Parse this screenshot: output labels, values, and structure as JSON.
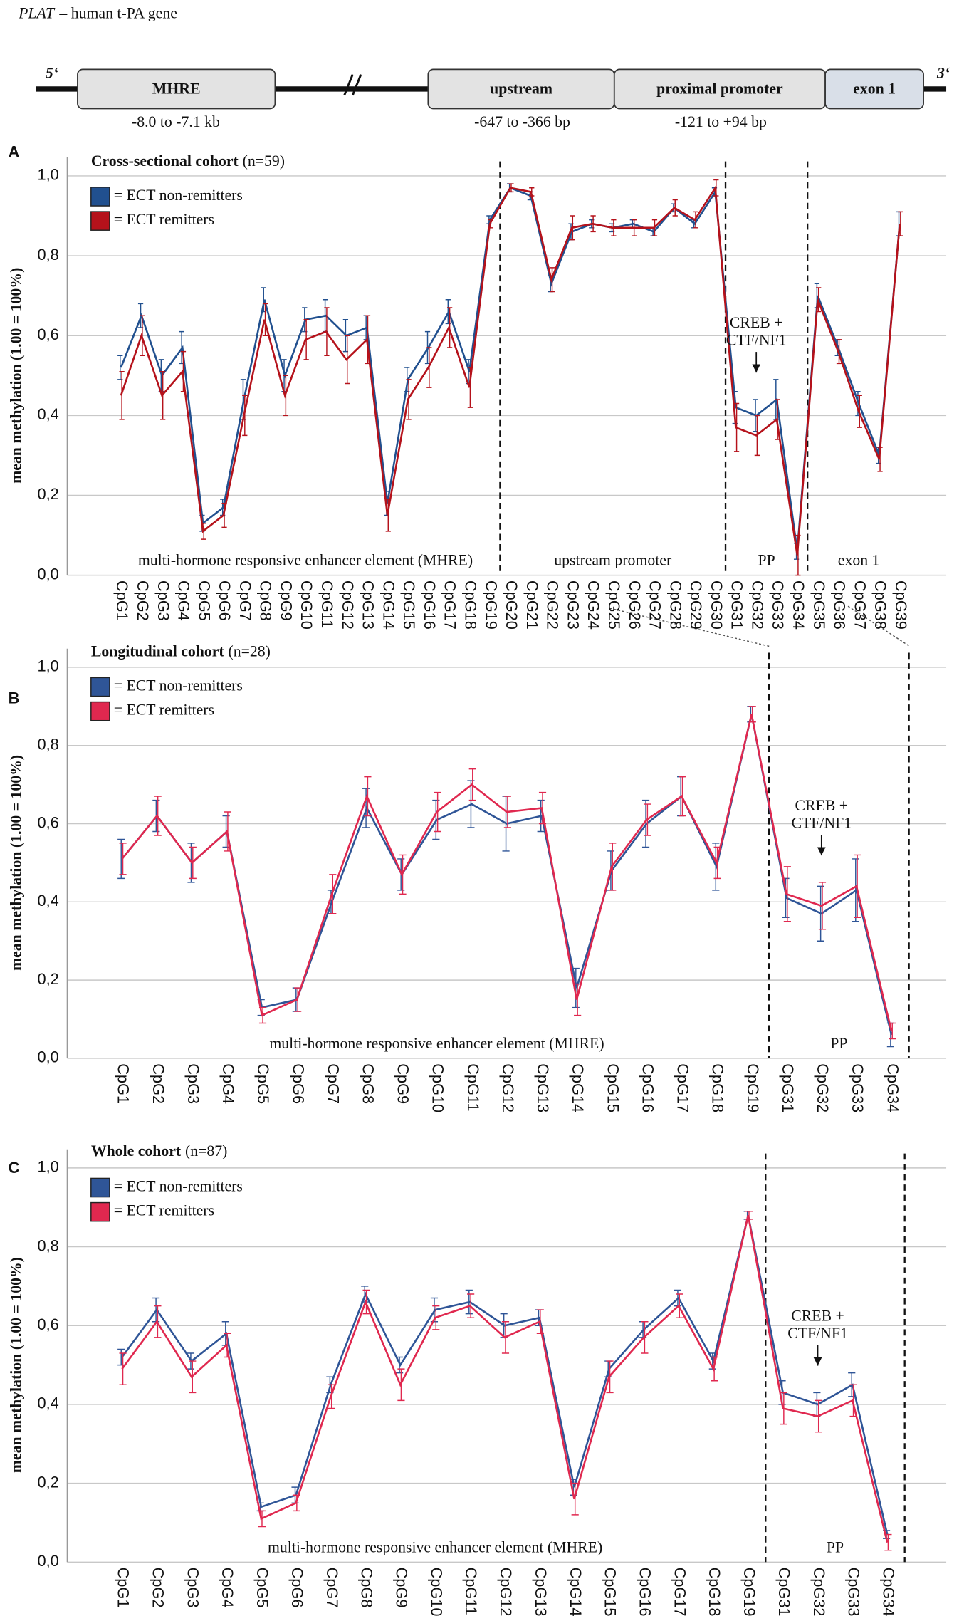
{
  "gene_diagram": {
    "title_italic": "PLAT",
    "title": "– human t-PA gene",
    "five_prime": "5‘",
    "three_prime": "3‘",
    "boxes": [
      {
        "label": "MHRE",
        "range": "-8.0 to -7.1 kb"
      },
      {
        "label": "upstream",
        "range": "-647 to -366 bp"
      },
      {
        "label": "proximal promoter",
        "range": "-121 to +94 bp"
      },
      {
        "label": "exon 1"
      }
    ]
  },
  "chart_data": [
    {
      "type": "line",
      "panel": "A",
      "title": "Cross-sectional cohort",
      "subtitle": "(n=59)",
      "y_label": "mean methylation (1.00 = 100%)",
      "categories": [
        "CpG1",
        "CpG2",
        "CpG3",
        "CpG4",
        "CpG5",
        "CpG6",
        "CpG7",
        "CpG8",
        "CpG9",
        "CpG10",
        "CpG11",
        "CpG12",
        "CpG13",
        "CpG14",
        "CpG15",
        "CpG16",
        "CpG17",
        "CpG18",
        "CpG19",
        "CpG20",
        "CpG21",
        "CpG22",
        "CpG23",
        "CpG24",
        "CpG25",
        "CpG26",
        "CpG27",
        "CpG28",
        "CpG29",
        "CpG30",
        "CpG31",
        "CpG32",
        "CpG33",
        "CpG34",
        "CpG35",
        "CpG36",
        "CpG37",
        "CpG38",
        "CpG39"
      ],
      "series": [
        {
          "name": "= ECT non-remitters",
          "color": "#21508f",
          "values": [
            0.52,
            0.65,
            0.5,
            0.57,
            0.13,
            0.17,
            0.44,
            0.69,
            0.5,
            0.64,
            0.65,
            0.6,
            0.62,
            0.18,
            0.49,
            0.57,
            0.66,
            0.51,
            0.89,
            0.97,
            0.95,
            0.73,
            0.86,
            0.88,
            0.87,
            0.88,
            0.86,
            0.92,
            0.88,
            0.96,
            0.42,
            0.4,
            0.44,
            0.06,
            0.7,
            0.57,
            0.43,
            0.3,
            0.88
          ],
          "errors": [
            0.03,
            0.03,
            0.04,
            0.04,
            0.02,
            0.02,
            0.05,
            0.03,
            0.04,
            0.03,
            0.04,
            0.04,
            0.03,
            0.03,
            0.03,
            0.04,
            0.03,
            0.03,
            0.01,
            0.01,
            0.01,
            0.02,
            0.02,
            0.01,
            0.01,
            0.01,
            0.01,
            0.01,
            0.01,
            0.01,
            0.04,
            0.04,
            0.05,
            0.02,
            0.03,
            0.02,
            0.03,
            0.02,
            0.03
          ]
        },
        {
          "name": "= ECT remitters",
          "color": "#b5121b",
          "values": [
            0.45,
            0.6,
            0.45,
            0.51,
            0.11,
            0.15,
            0.4,
            0.64,
            0.45,
            0.59,
            0.61,
            0.54,
            0.59,
            0.15,
            0.44,
            0.52,
            0.62,
            0.47,
            0.88,
            0.97,
            0.96,
            0.74,
            0.87,
            0.88,
            0.87,
            0.87,
            0.87,
            0.92,
            0.89,
            0.97,
            0.37,
            0.35,
            0.39,
            0.05,
            0.69,
            0.56,
            0.41,
            0.29,
            0.88
          ],
          "errors": [
            0.06,
            0.05,
            0.06,
            0.05,
            0.02,
            0.03,
            0.05,
            0.04,
            0.05,
            0.05,
            0.06,
            0.06,
            0.06,
            0.04,
            0.05,
            0.05,
            0.05,
            0.05,
            0.01,
            0.01,
            0.01,
            0.03,
            0.03,
            0.02,
            0.02,
            0.02,
            0.02,
            0.02,
            0.02,
            0.02,
            0.06,
            0.05,
            0.05,
            0.05,
            0.03,
            0.03,
            0.04,
            0.03,
            0.03
          ]
        }
      ],
      "ylim": [
        0,
        1
      ],
      "yticks": [
        {
          "value": 0,
          "label": "0,0"
        },
        {
          "value": 0.2,
          "label": "0,2"
        },
        {
          "value": 0.4,
          "label": "0,4"
        },
        {
          "value": 0.6,
          "label": "0,6"
        },
        {
          "value": 0.8,
          "label": "0,8"
        },
        {
          "value": 1,
          "label": "1,0"
        }
      ],
      "grid": true,
      "regions": [
        {
          "label": "multi-hormone responsive enhancer element (MHRE)",
          "from": "CpG1",
          "to": "CpG19"
        },
        {
          "label": "upstream promoter",
          "from": "CpG20",
          "to": "CpG30"
        },
        {
          "label": "PP",
          "from": "CpG31",
          "to": "CpG34"
        },
        {
          "label": "exon 1",
          "from": "CpG35",
          "to": "CpG39"
        }
      ],
      "end_divider": false,
      "annotation": {
        "lines": [
          "CREB +",
          "CTF/NF1"
        ],
        "category": "CpG32"
      }
    },
    {
      "type": "line",
      "panel": "B",
      "title": "Longitudinal cohort",
      "subtitle": "(n=28)",
      "y_label": "mean methylation (1.00 = 100%)",
      "categories": [
        "CpG1",
        "CpG2",
        "CpG3",
        "CpG4",
        "CpG5",
        "CpG6",
        "CpG7",
        "CpG8",
        "CpG9",
        "CpG10",
        "CpG11",
        "CpG12",
        "CpG13",
        "CpG14",
        "CpG15",
        "CpG16",
        "CpG17",
        "CpG18",
        "CpG19",
        "CpG31",
        "CpG32",
        "CpG33",
        "CpG34"
      ],
      "series": [
        {
          "name": "= ECT non-remitters",
          "color": "#2f5597",
          "values": [
            0.51,
            0.62,
            0.5,
            0.58,
            0.13,
            0.15,
            0.4,
            0.64,
            0.47,
            0.61,
            0.65,
            0.6,
            0.62,
            0.18,
            0.48,
            0.6,
            0.67,
            0.49,
            0.88,
            0.41,
            0.37,
            0.43,
            0.06
          ],
          "errors": [
            0.05,
            0.04,
            0.05,
            0.04,
            0.02,
            0.03,
            0.03,
            0.05,
            0.04,
            0.05,
            0.06,
            0.07,
            0.04,
            0.05,
            0.05,
            0.06,
            0.05,
            0.06,
            0.02,
            0.05,
            0.07,
            0.08,
            0.03
          ]
        },
        {
          "name": "= ECT remitters",
          "color": "#e0284f",
          "values": [
            0.51,
            0.62,
            0.5,
            0.58,
            0.11,
            0.15,
            0.42,
            0.67,
            0.47,
            0.63,
            0.7,
            0.63,
            0.64,
            0.15,
            0.49,
            0.61,
            0.67,
            0.5,
            0.88,
            0.42,
            0.39,
            0.44,
            0.07
          ],
          "errors": [
            0.04,
            0.05,
            0.04,
            0.05,
            0.02,
            0.03,
            0.05,
            0.05,
            0.05,
            0.05,
            0.04,
            0.04,
            0.04,
            0.04,
            0.06,
            0.04,
            0.05,
            0.04,
            0.02,
            0.07,
            0.06,
            0.08,
            0.02
          ]
        }
      ],
      "ylim": [
        0,
        1
      ],
      "yticks": [
        {
          "value": 0,
          "label": "0,0"
        },
        {
          "value": 0.2,
          "label": "0,2"
        },
        {
          "value": 0.4,
          "label": "0,4"
        },
        {
          "value": 0.6,
          "label": "0,6"
        },
        {
          "value": 0.8,
          "label": "0,8"
        },
        {
          "value": 1,
          "label": "1,0"
        }
      ],
      "grid": true,
      "regions": [
        {
          "label": "multi-hormone responsive enhancer element (MHRE)",
          "from": "CpG1",
          "to": "CpG19"
        },
        {
          "label": "PP",
          "from": "CpG31",
          "to": "CpG34"
        }
      ],
      "end_divider": true,
      "annotation": {
        "lines": [
          "CREB +",
          "CTF/NF1"
        ],
        "category": "CpG32"
      }
    },
    {
      "type": "line",
      "panel": "C",
      "title": "Whole cohort",
      "subtitle": "(n=87)",
      "y_label": "mean methylation (1.00 = 100%)",
      "categories": [
        "CpG1",
        "CpG2",
        "CpG3",
        "CpG4",
        "CpG5",
        "CpG6",
        "CpG7",
        "CpG8",
        "CpG9",
        "CpG10",
        "CpG11",
        "CpG12",
        "CpG13",
        "CpG14",
        "CpG15",
        "CpG16",
        "CpG17",
        "CpG18",
        "CpG19",
        "CpG31",
        "CpG32",
        "CpG33",
        "CpG34"
      ],
      "series": [
        {
          "name": "= ECT non-remitters",
          "color": "#2f5597",
          "values": [
            0.52,
            0.64,
            0.51,
            0.58,
            0.14,
            0.17,
            0.45,
            0.68,
            0.5,
            0.64,
            0.66,
            0.6,
            0.62,
            0.19,
            0.49,
            0.59,
            0.67,
            0.51,
            0.88,
            0.43,
            0.4,
            0.45,
            0.07
          ],
          "errors": [
            0.02,
            0.03,
            0.02,
            0.03,
            0.01,
            0.02,
            0.02,
            0.02,
            0.02,
            0.03,
            0.03,
            0.03,
            0.02,
            0.02,
            0.02,
            0.02,
            0.02,
            0.02,
            0.01,
            0.03,
            0.03,
            0.03,
            0.01
          ]
        },
        {
          "name": "= ECT remitters",
          "color": "#e0284f",
          "values": [
            0.49,
            0.61,
            0.47,
            0.55,
            0.11,
            0.15,
            0.42,
            0.66,
            0.45,
            0.62,
            0.65,
            0.57,
            0.61,
            0.16,
            0.47,
            0.57,
            0.65,
            0.49,
            0.88,
            0.39,
            0.37,
            0.41,
            0.05
          ],
          "errors": [
            0.04,
            0.04,
            0.04,
            0.03,
            0.02,
            0.02,
            0.03,
            0.03,
            0.04,
            0.03,
            0.03,
            0.04,
            0.03,
            0.04,
            0.04,
            0.04,
            0.03,
            0.03,
            0.01,
            0.04,
            0.04,
            0.04,
            0.02
          ]
        }
      ],
      "ylim": [
        0,
        1
      ],
      "yticks": [
        {
          "value": 0,
          "label": "0,0"
        },
        {
          "value": 0.2,
          "label": "0,2"
        },
        {
          "value": 0.4,
          "label": "0,4"
        },
        {
          "value": 0.6,
          "label": "0,6"
        },
        {
          "value": 0.8,
          "label": "0,8"
        },
        {
          "value": 1,
          "label": "1,0"
        }
      ],
      "grid": true,
      "regions": [
        {
          "label": "multi-hormone responsive enhancer element (MHRE)",
          "from": "CpG1",
          "to": "CpG19"
        },
        {
          "label": "PP",
          "from": "CpG31",
          "to": "CpG34"
        }
      ],
      "end_divider": true,
      "annotation": {
        "lines": [
          "CREB +",
          "CTF/NF1"
        ],
        "category": "CpG32"
      }
    }
  ]
}
